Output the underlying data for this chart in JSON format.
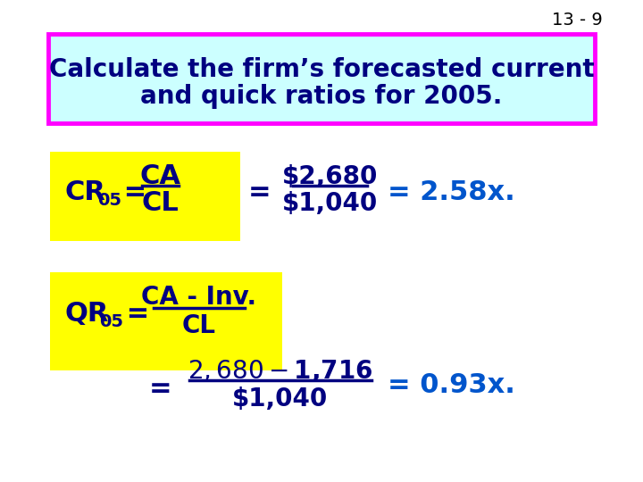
{
  "slide_number": "13 - 9",
  "title_line1": "Calculate the firm’s forecasted current",
  "title_line2": "and quick ratios for 2005.",
  "title_bg_color": "#ccffff",
  "title_border_color": "#ff00ff",
  "yellow_bg": "#ffff00",
  "dark_blue": "#000080",
  "bright_blue": "#0000ff",
  "answer_blue": "#0055cc",
  "bg_color": "#ffffff",
  "slide_num_color": "#000000"
}
